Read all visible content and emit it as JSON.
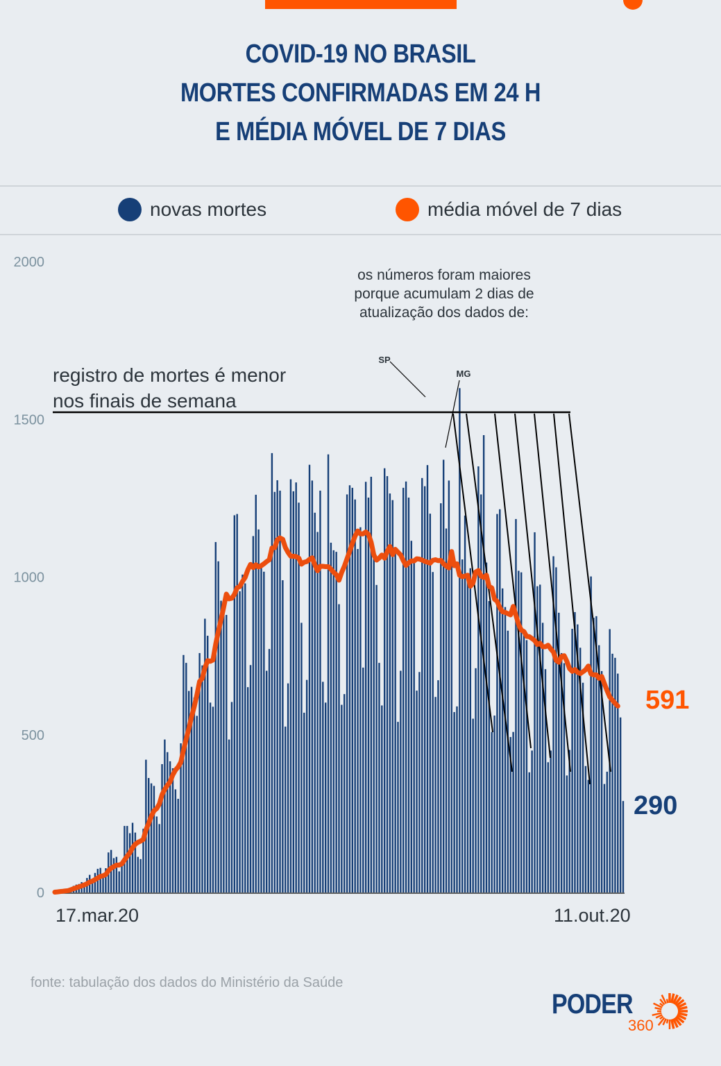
{
  "header": {
    "title_lines": [
      "COVID-19 NO BRASIL",
      "MORTES CONFIRMADAS EM 24 H",
      "E MÉDIA MÓVEL DE 7 DIAS"
    ]
  },
  "legend": {
    "items": [
      {
        "label": "novas mortes",
        "color": "#163f77"
      },
      {
        "label": "média móvel de 7 dias",
        "color": "#ff5500"
      }
    ]
  },
  "annotations": {
    "weekend_note_lines": [
      "registro de mortes é menor",
      "nos finais de semana"
    ],
    "accum_note_lines": [
      "os números foram maiores",
      "porque acumulam 2 dias de",
      "atualização dos dados de:"
    ],
    "sp_label": "SP",
    "mg_label": "MG"
  },
  "chart_data": {
    "type": "bar",
    "title": "COVID-19 no Brasil: mortes confirmadas em 24 h e média móvel de 7 dias",
    "xlabel": "",
    "ylabel": "",
    "x_start_label": "17.mar.20",
    "x_end_label": "11.out.20",
    "ylim": [
      0,
      2000
    ],
    "yticks": [
      0,
      500,
      1000,
      1500,
      2000
    ],
    "grid": false,
    "legend_position": "top",
    "last_values": {
      "novas_mortes": 290,
      "media_movel": 591
    },
    "series": [
      {
        "name": "novas mortes",
        "type": "bar",
        "color": "#163f77",
        "values": [
          1,
          3,
          4,
          7,
          7,
          7,
          12,
          21,
          25,
          27,
          33,
          22,
          46,
          56,
          40,
          62,
          75,
          78,
          55,
          77,
          127,
          135,
          109,
          113,
          67,
          100,
          211,
          211,
          188,
          221,
          190,
          113,
          106,
          202,
          421,
          363,
          346,
          338,
          241,
          217,
          407,
          485,
          445,
          416,
          394,
          327,
          297,
          473,
          753,
          728,
          639,
          652,
          618,
          560,
          759,
          720,
          868,
          814,
          602,
          589,
          1111,
          1050,
          925,
          893,
          880,
          485,
          604,
          1196,
          1200,
          955,
          1008,
          980,
          651,
          721,
          1130,
          1261,
          1151,
          1038,
          1017,
          703,
          772,
          1393,
          1270,
          1307,
          1274,
          990,
          526,
          663,
          1310,
          1272,
          1300,
          1236,
          855,
          570,
          674,
          1356,
          1306,
          1204,
          1143,
          1274,
          668,
          602,
          1389,
          1109,
          1085,
          1080,
          914,
          595,
          629,
          1262,
          1291,
          1283,
          1246,
          1089,
          1158,
          713,
          1302,
          1252,
          1318,
          1091,
          975,
          728,
          593,
          1345,
          1320,
          1265,
          1244,
          1088,
          541,
          703,
          1283,
          1303,
          1252,
          1115,
          1049,
          640,
          699,
          1314,
          1288,
          1355,
          1201,
          1016,
          620,
          673,
          1234,
          1372,
          1154,
          1306,
          1063,
          572,
          590,
          1599,
          1056,
          1195,
          1012,
          1028,
          551,
          711,
          1351,
          1262,
          1450,
          1046,
          924,
          509,
          561,
          1200,
          1215,
          964,
          905,
          830,
          493,
          509,
          1184,
          1020,
          1015,
          817,
          800,
          381,
          450,
          1142,
          971,
          976,
          855,
          708,
          413,
          450,
          1066,
          1031,
          887,
          759,
          727,
          371,
          452,
          836,
          889,
          850,
          776,
          665,
          401,
          357,
          1002,
          871,
          876,
          784,
          702,
          344,
          383,
          835,
          757,
          744,
          694,
          555,
          290
        ]
      },
      {
        "name": "média móvel de 7 dias",
        "type": "line",
        "color": "#ff5500",
        "values": [
          1,
          2,
          3,
          4,
          5,
          6,
          9,
          12,
          15,
          18,
          21,
          24,
          28,
          33,
          36,
          41,
          46,
          51,
          53,
          57,
          69,
          77,
          82,
          87,
          87,
          91,
          103,
          115,
          126,
          142,
          153,
          159,
          163,
          168,
          198,
          219,
          242,
          259,
          266,
          281,
          310,
          327,
          340,
          351,
          373,
          388,
          398,
          413,
          451,
          486,
          520,
          557,
          589,
          627,
          669,
          679,
          712,
          735,
          733,
          737,
          787,
          828,
          865,
          905,
          946,
          931,
          933,
          945,
          966,
          970,
          986,
          999,
          1023,
          1040,
          1030,
          1039,
          1032,
          1036,
          1042,
          1049,
          1055,
          1092,
          1093,
          1118,
          1124,
          1120,
          1094,
          1078,
          1066,
          1066,
          1065,
          1060,
          1041,
          1047,
          1049,
          1056,
          1061,
          1039,
          1020,
          1034,
          1034,
          1033,
          1033,
          1025,
          1015,
          1008,
          990,
          1015,
          1034,
          1058,
          1082,
          1107,
          1130,
          1146,
          1137,
          1137,
          1143,
          1135,
          1110,
          1070,
          1054,
          1060,
          1070,
          1060,
          1081,
          1097,
          1071,
          1088,
          1079,
          1070,
          1052,
          1037,
          1045,
          1051,
          1051,
          1058,
          1057,
          1054,
          1050,
          1047,
          1044,
          1053,
          1055,
          1052,
          1053,
          1042,
          1035,
          1029,
          1081,
          1036,
          1042,
          1006,
          1001,
          1003,
          1006,
          971,
          981,
          1016,
          1021,
          1003,
          999,
          1006,
          970,
          966,
          930,
          923,
          903,
          890,
          888,
          884,
          880,
          907,
          879,
          850,
          832,
          827,
          812,
          811,
          805,
          799,
          786,
          790,
          779,
          779,
          784,
          772,
          762,
          736,
          730,
          748,
          751,
          733,
          710,
          701,
          707,
          698,
          694,
          700,
          706,
          718,
          693,
          690,
          690,
          679,
          685,
          662,
          640,
          620,
          610,
          600,
          591
        ]
      }
    ]
  },
  "labels": {
    "end_avg": "591",
    "end_bar": "290",
    "y_ticks": [
      "2000",
      "1500",
      "1000",
      "500",
      "0"
    ]
  },
  "footer": {
    "source": "fonte: tabulação dos dados do Ministério da Saúde",
    "logo_text": "PODER",
    "logo_num": "360"
  }
}
